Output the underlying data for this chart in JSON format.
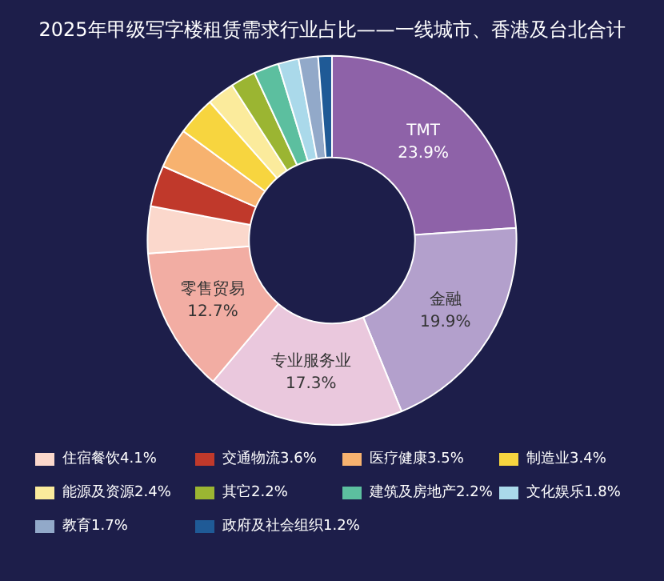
{
  "chart_data": {
    "type": "donut",
    "title": "2025年甲级写字楼租赁需求行业占比——一线城市、香港及台北合计",
    "categories": [
      "TMT",
      "金融",
      "专业服务业",
      "零售贸易",
      "住宿餐饮",
      "交通物流",
      "医疗健康",
      "制造业",
      "能源及资源",
      "其它",
      "建筑及房地产",
      "文化娱乐",
      "教育",
      "政府及社会组织"
    ],
    "values": [
      23.9,
      19.9,
      17.3,
      12.7,
      4.1,
      3.6,
      3.5,
      3.4,
      2.4,
      2.2,
      2.2,
      1.8,
      1.7,
      1.2
    ],
    "value_labels": [
      "23.9%",
      "19.9%",
      "17.3%",
      "12.7%",
      "4.1%",
      "3.6%",
      "3.5%",
      "3.4%",
      "2.4%",
      "2.2%",
      "2.2%",
      "1.8%",
      "1.7%",
      "1.2%"
    ],
    "colors": [
      "#8e62a8",
      "#b3a0cc",
      "#eac8dd",
      "#f2ada3",
      "#fbd8cc",
      "#c0392b",
      "#f7b26f",
      "#f7d53f",
      "#fbeb9c",
      "#9bb532",
      "#5cbf9f",
      "#aad9ea",
      "#92a9c9",
      "#1f5a96"
    ],
    "legend": "bottom"
  }
}
